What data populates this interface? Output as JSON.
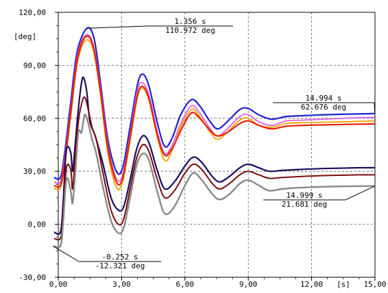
{
  "chart_data": {
    "type": "line",
    "xlim": [
      0,
      15
    ],
    "ylim": [
      -30,
      120
    ],
    "x_ticks": [
      0,
      3,
      6,
      9,
      12,
      15
    ],
    "x_tick_labels": [
      "0,00",
      "3,00",
      "6,00",
      "9,00",
      "12,00",
      "15,00"
    ],
    "y_ticks": [
      -30,
      0,
      30,
      60,
      90,
      120
    ],
    "y_tick_labels": [
      "-30,00",
      "0,00",
      "30,00",
      "60,00",
      "90,00",
      "120,00"
    ],
    "ylabel": "[deg]",
    "xunit": "[s]",
    "grid": true,
    "series": [
      {
        "color": "#1f1fd0",
        "width": 2.2,
        "points": [
          [
            -0.2,
            26.5
          ],
          [
            0.1,
            26.5
          ],
          [
            0.3,
            40
          ],
          [
            0.6,
            70
          ],
          [
            0.9,
            98
          ],
          [
            1.36,
            110.97
          ],
          [
            1.7,
            105
          ],
          [
            2.0,
            80
          ],
          [
            2.35,
            48
          ],
          [
            2.75,
            30
          ],
          [
            3.05,
            32
          ],
          [
            3.4,
            55
          ],
          [
            3.75,
            79
          ],
          [
            4.0,
            85
          ],
          [
            4.3,
            78
          ],
          [
            4.7,
            57
          ],
          [
            5.05,
            44
          ],
          [
            5.4,
            49
          ],
          [
            5.8,
            62
          ],
          [
            6.3,
            70.5
          ],
          [
            6.7,
            67
          ],
          [
            7.2,
            58
          ],
          [
            7.55,
            54
          ],
          [
            8.0,
            58
          ],
          [
            8.6,
            65
          ],
          [
            9.0,
            65.5
          ],
          [
            9.5,
            62
          ],
          [
            10.1,
            59.5
          ],
          [
            10.8,
            61
          ],
          [
            11.6,
            61.5
          ],
          [
            12.6,
            62
          ],
          [
            13.5,
            62.3
          ],
          [
            14.3,
            62.5
          ],
          [
            14.99,
            62.68
          ]
        ]
      },
      {
        "color": "#e060e0",
        "width": 1.8,
        "points": [
          [
            -0.2,
            24
          ],
          [
            0.1,
            24
          ],
          [
            0.3,
            37
          ],
          [
            0.6,
            66
          ],
          [
            0.9,
            95
          ],
          [
            1.28,
            107
          ],
          [
            1.65,
            102
          ],
          [
            2.0,
            77
          ],
          [
            2.35,
            45
          ],
          [
            2.75,
            26
          ],
          [
            3.05,
            28
          ],
          [
            3.4,
            51
          ],
          [
            3.75,
            76
          ],
          [
            4.0,
            80
          ],
          [
            4.3,
            73
          ],
          [
            4.7,
            52
          ],
          [
            5.05,
            40
          ],
          [
            5.4,
            45
          ],
          [
            5.8,
            57
          ],
          [
            6.3,
            67
          ],
          [
            6.7,
            63
          ],
          [
            7.2,
            54
          ],
          [
            7.55,
            50
          ],
          [
            8.0,
            54
          ],
          [
            8.6,
            61
          ],
          [
            9.0,
            62
          ],
          [
            9.5,
            58
          ],
          [
            10.1,
            56
          ],
          [
            10.8,
            58.5
          ],
          [
            11.6,
            59
          ],
          [
            12.6,
            59.5
          ],
          [
            13.5,
            60
          ],
          [
            14.3,
            60.3
          ],
          [
            14.99,
            60.5
          ]
        ]
      },
      {
        "color": "#f0a000",
        "width": 1.8,
        "points": [
          [
            -0.2,
            20.5
          ],
          [
            0.1,
            20.5
          ],
          [
            0.3,
            33
          ],
          [
            0.6,
            62
          ],
          [
            0.9,
            91
          ],
          [
            1.28,
            104
          ],
          [
            1.65,
            99
          ],
          [
            2.0,
            73
          ],
          [
            2.35,
            40
          ],
          [
            2.75,
            21
          ],
          [
            3.05,
            24
          ],
          [
            3.4,
            47
          ],
          [
            3.75,
            72
          ],
          [
            4.0,
            77
          ],
          [
            4.3,
            70
          ],
          [
            4.7,
            49
          ],
          [
            5.05,
            36
          ],
          [
            5.4,
            42
          ],
          [
            5.8,
            55
          ],
          [
            6.3,
            65
          ],
          [
            6.7,
            61
          ],
          [
            7.2,
            52
          ],
          [
            7.55,
            48
          ],
          [
            8.0,
            52
          ],
          [
            8.6,
            59
          ],
          [
            9.0,
            60
          ],
          [
            9.5,
            56
          ],
          [
            10.1,
            55
          ],
          [
            10.8,
            57
          ],
          [
            11.6,
            57.5
          ],
          [
            12.6,
            57.8
          ],
          [
            13.5,
            58
          ],
          [
            14.3,
            58.3
          ],
          [
            14.99,
            58.5
          ]
        ]
      },
      {
        "color": "#e82000",
        "width": 2.2,
        "points": [
          [
            -0.2,
            22
          ],
          [
            0.1,
            22
          ],
          [
            0.3,
            35
          ],
          [
            0.6,
            64
          ],
          [
            0.9,
            93
          ],
          [
            1.28,
            106
          ],
          [
            1.65,
            101
          ],
          [
            2.0,
            75
          ],
          [
            2.35,
            43
          ],
          [
            2.75,
            24
          ],
          [
            3.05,
            26
          ],
          [
            3.4,
            49
          ],
          [
            3.75,
            73
          ],
          [
            4.0,
            78
          ],
          [
            4.3,
            71
          ],
          [
            4.7,
            50
          ],
          [
            5.05,
            39
          ],
          [
            5.4,
            43
          ],
          [
            5.8,
            53
          ],
          [
            6.3,
            63
          ],
          [
            6.7,
            60
          ],
          [
            7.2,
            53
          ],
          [
            7.55,
            50
          ],
          [
            8.0,
            52
          ],
          [
            8.6,
            57
          ],
          [
            9.0,
            58.5
          ],
          [
            9.5,
            56
          ],
          [
            10.1,
            54
          ],
          [
            10.8,
            55.5
          ],
          [
            11.6,
            56
          ],
          [
            12.6,
            56.3
          ],
          [
            13.5,
            56.5
          ],
          [
            14.3,
            56.7
          ],
          [
            14.99,
            56.8
          ]
        ]
      },
      {
        "color": "#1a0a60",
        "width": 2.2,
        "points": [
          [
            -0.2,
            -4.5
          ],
          [
            0.1,
            -4.5
          ],
          [
            0.22,
            10
          ],
          [
            0.35,
            38
          ],
          [
            0.45,
            44
          ],
          [
            0.6,
            40
          ],
          [
            0.68,
            30
          ],
          [
            0.8,
            45
          ],
          [
            0.95,
            65
          ],
          [
            1.1,
            80
          ],
          [
            1.2,
            83
          ],
          [
            1.35,
            75
          ],
          [
            1.5,
            58
          ],
          [
            1.75,
            50
          ],
          [
            2.1,
            35
          ],
          [
            2.5,
            15
          ],
          [
            2.85,
            8
          ],
          [
            3.1,
            10
          ],
          [
            3.4,
            25
          ],
          [
            3.7,
            42
          ],
          [
            4.0,
            50
          ],
          [
            4.3,
            46
          ],
          [
            4.7,
            30
          ],
          [
            5.05,
            20
          ],
          [
            5.5,
            24
          ],
          [
            6.0,
            33
          ],
          [
            6.4,
            38
          ],
          [
            6.8,
            35
          ],
          [
            7.3,
            27
          ],
          [
            7.65,
            24
          ],
          [
            8.1,
            27
          ],
          [
            8.6,
            32
          ],
          [
            9.0,
            34
          ],
          [
            9.5,
            32
          ],
          [
            10.0,
            30
          ],
          [
            10.6,
            30.5
          ],
          [
            11.4,
            31
          ],
          [
            12.4,
            31.5
          ],
          [
            13.5,
            31.8
          ],
          [
            14.3,
            32
          ],
          [
            14.99,
            32
          ]
        ]
      },
      {
        "color": "#7a0a0a",
        "width": 2.0,
        "points": [
          [
            -0.2,
            -8
          ],
          [
            0.1,
            -8
          ],
          [
            0.22,
            3
          ],
          [
            0.35,
            28
          ],
          [
            0.45,
            34
          ],
          [
            0.6,
            30
          ],
          [
            0.68,
            20
          ],
          [
            0.8,
            38
          ],
          [
            0.95,
            58
          ],
          [
            1.1,
            68
          ],
          [
            1.25,
            72
          ],
          [
            1.4,
            66
          ],
          [
            1.6,
            55
          ],
          [
            1.8,
            48
          ],
          [
            2.1,
            30
          ],
          [
            2.5,
            8
          ],
          [
            2.85,
            0
          ],
          [
            3.1,
            3
          ],
          [
            3.4,
            20
          ],
          [
            3.7,
            37
          ],
          [
            4.0,
            45
          ],
          [
            4.3,
            41
          ],
          [
            4.7,
            25
          ],
          [
            5.05,
            15
          ],
          [
            5.5,
            19
          ],
          [
            6.0,
            29
          ],
          [
            6.4,
            34
          ],
          [
            6.8,
            31
          ],
          [
            7.3,
            23
          ],
          [
            7.65,
            20
          ],
          [
            8.1,
            23
          ],
          [
            8.6,
            28
          ],
          [
            9.0,
            30
          ],
          [
            9.5,
            28
          ],
          [
            10.0,
            26
          ],
          [
            10.6,
            26.5
          ],
          [
            11.4,
            27
          ],
          [
            12.4,
            27.5
          ],
          [
            13.5,
            27.8
          ],
          [
            14.3,
            28
          ],
          [
            14.99,
            28
          ]
        ]
      },
      {
        "color": "#888888",
        "width": 2.4,
        "points": [
          [
            -0.2,
            -12.32
          ],
          [
            0.1,
            -12.3
          ],
          [
            0.22,
            -1
          ],
          [
            0.35,
            22
          ],
          [
            0.45,
            26
          ],
          [
            0.6,
            18
          ],
          [
            0.68,
            12
          ],
          [
            0.8,
            28
          ],
          [
            0.95,
            52
          ],
          [
            1.1,
            52
          ],
          [
            1.25,
            62
          ],
          [
            1.4,
            58
          ],
          [
            1.6,
            48
          ],
          [
            1.8,
            40
          ],
          [
            2.1,
            22
          ],
          [
            2.5,
            2
          ],
          [
            2.85,
            -5
          ],
          [
            3.1,
            -2
          ],
          [
            3.4,
            15
          ],
          [
            3.7,
            33
          ],
          [
            4.0,
            40
          ],
          [
            4.3,
            36
          ],
          [
            4.7,
            18
          ],
          [
            5.05,
            6
          ],
          [
            5.5,
            10
          ],
          [
            6.0,
            22
          ],
          [
            6.4,
            29
          ],
          [
            6.8,
            25
          ],
          [
            7.3,
            17
          ],
          [
            7.65,
            14
          ],
          [
            8.1,
            17
          ],
          [
            8.6,
            23
          ],
          [
            9.0,
            25
          ],
          [
            9.5,
            22
          ],
          [
            10.0,
            19
          ],
          [
            10.6,
            20
          ],
          [
            11.4,
            20.7
          ],
          [
            12.4,
            21.2
          ],
          [
            13.5,
            21.5
          ],
          [
            14.3,
            21.6
          ],
          [
            14.99,
            21.68
          ]
        ]
      }
    ],
    "annotations": [
      {
        "time": "1.356 s",
        "value": "110.972 deg",
        "x": 1.356,
        "y": 110.972
      },
      {
        "time": "14.994 s",
        "value": "62.676 deg",
        "x": 14.994,
        "y": 62.676
      },
      {
        "time": "14.999 s",
        "value": "21.681 deg",
        "x": 14.999,
        "y": 21.681
      },
      {
        "time": "-0.252 s",
        "value": "-12.321 deg",
        "x": -0.252,
        "y": -12.321
      }
    ]
  }
}
